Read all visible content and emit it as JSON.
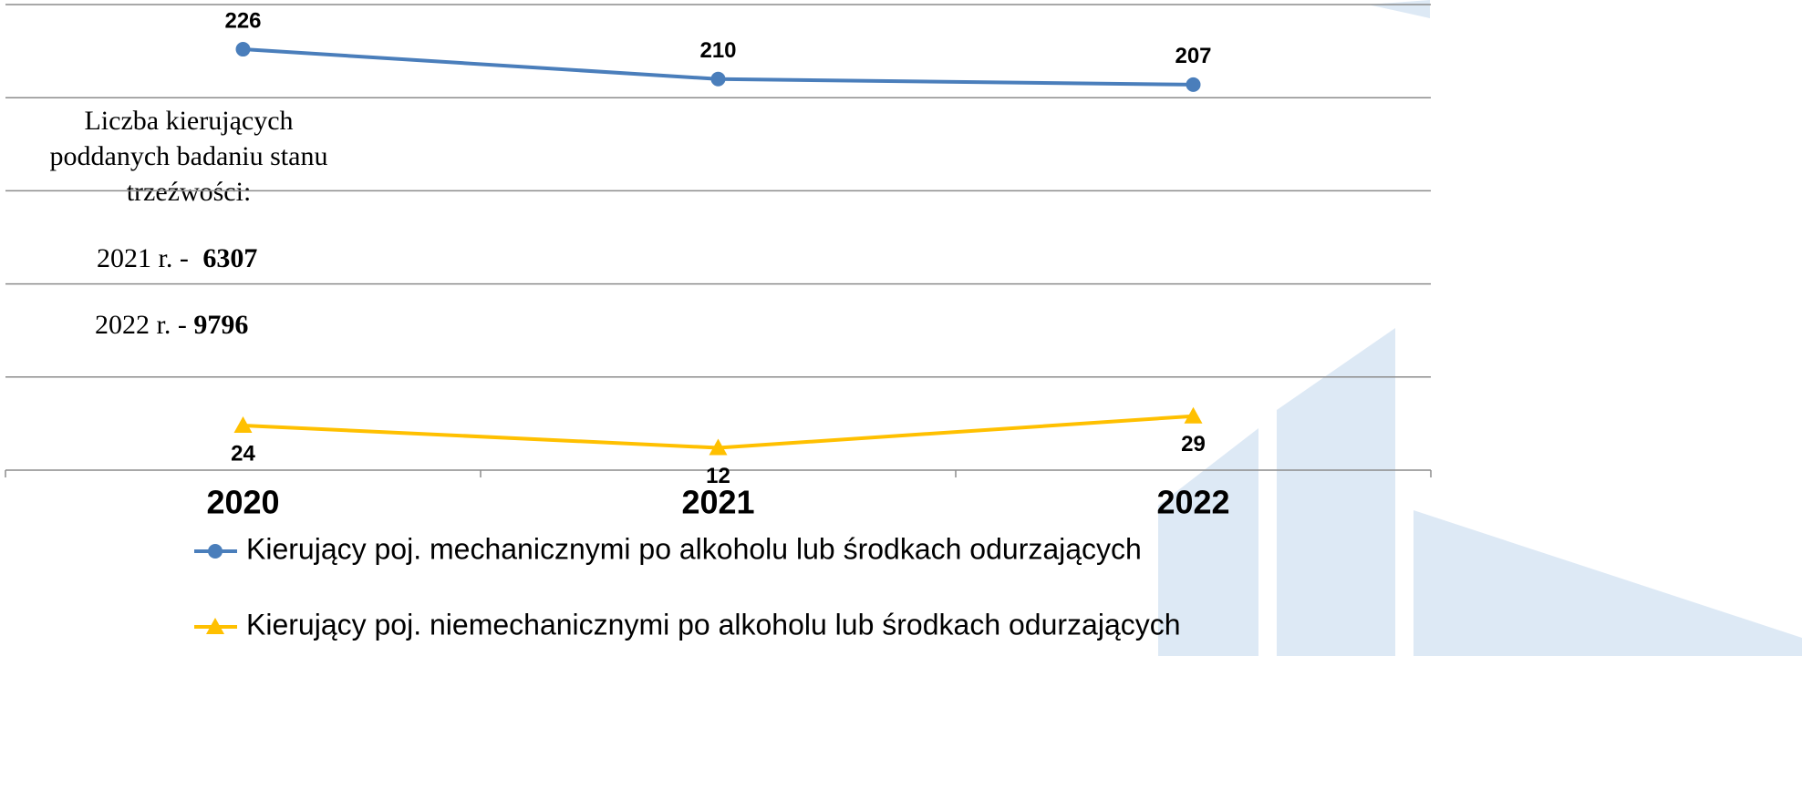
{
  "chart_data": {
    "type": "line",
    "categories": [
      "2020",
      "2021",
      "2022"
    ],
    "series": [
      {
        "name": "Kierujący poj. mechanicznymi po alkoholu lub środkach odurzających",
        "color": "#4a7ebb",
        "marker": "circle",
        "values": [
          226,
          210,
          207
        ]
      },
      {
        "name": "Kierujący poj. niemechanicznymi po alkoholu lub środkach odurzających",
        "color": "#ffc000",
        "marker": "triangle",
        "values": [
          24,
          12,
          29
        ]
      }
    ],
    "ylim": [
      0,
      250
    ],
    "yticks": [
      0,
      50,
      100,
      150,
      200,
      250
    ],
    "grid": true,
    "annotation": {
      "lines": [
        "Liczba kierujących",
        "poddanych badaniu stanu",
        "trzeźwości:"
      ],
      "items": [
        {
          "label": "2021 r. - ",
          "value": "6307"
        },
        {
          "label": "2022 r. - ",
          "value": "9796"
        }
      ]
    }
  }
}
